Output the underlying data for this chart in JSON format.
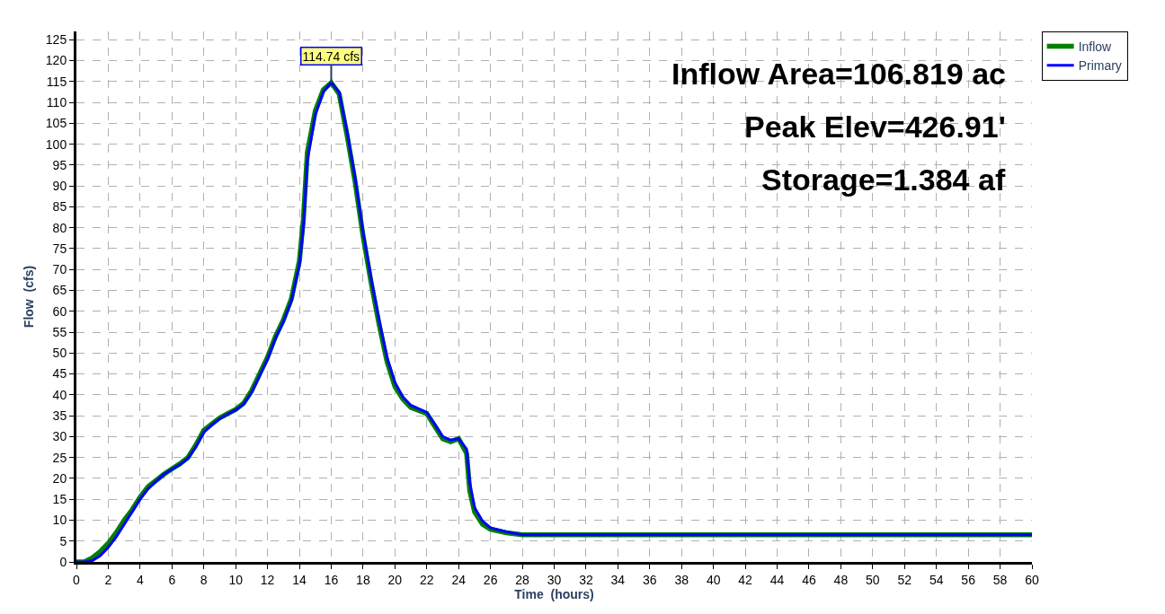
{
  "chart_data": {
    "type": "line",
    "xlabel": "Time  (hours)",
    "ylabel": "Flow  (cfs)",
    "xlim": [
      0,
      60
    ],
    "xticks": [
      0,
      2,
      4,
      6,
      8,
      10,
      12,
      14,
      16,
      18,
      20,
      22,
      24,
      26,
      28,
      30,
      32,
      34,
      36,
      38,
      40,
      42,
      44,
      46,
      48,
      50,
      52,
      54,
      56,
      58,
      60
    ],
    "ylim": [
      0,
      127
    ],
    "yticks": [
      0,
      5,
      10,
      15,
      20,
      25,
      30,
      35,
      40,
      45,
      50,
      55,
      60,
      65,
      70,
      75,
      80,
      85,
      90,
      95,
      100,
      105,
      110,
      115,
      120,
      125
    ],
    "grid": true,
    "legend": "top right",
    "line_style": "solid",
    "marker": "none",
    "series": [
      {
        "name": "Inflow",
        "color": "#008000",
        "x": [
          0,
          0.5,
          1,
          1.5,
          2,
          2.5,
          3,
          3.5,
          4,
          4.5,
          5,
          5.5,
          6,
          6.5,
          7,
          7.5,
          8,
          8.5,
          9,
          9.5,
          10,
          10.5,
          11,
          11.5,
          12,
          12.5,
          13,
          13.5,
          14,
          14.25,
          14.5,
          15,
          15.5,
          16,
          16.5,
          17,
          17.5,
          18,
          18.5,
          19,
          19.5,
          20,
          20.5,
          21,
          22,
          22.5,
          23,
          23.5,
          24,
          24.5,
          24.7,
          25,
          25.5,
          26,
          27,
          28,
          60
        ],
        "values": [
          0,
          0,
          1,
          2.5,
          4.5,
          7,
          10,
          12.5,
          15.5,
          18,
          19.5,
          21,
          22.3,
          23.5,
          25,
          28,
          31.5,
          33,
          34.5,
          35.5,
          36.5,
          38,
          41,
          45,
          49,
          54,
          58,
          63,
          72,
          82,
          98,
          108,
          113,
          114.74,
          112,
          102,
          91,
          78,
          67,
          57,
          48,
          42,
          39,
          37,
          35.5,
          32.5,
          29.5,
          28.8,
          29.5,
          26,
          17,
          12,
          9,
          7.8,
          7,
          6.5,
          6.5
        ]
      },
      {
        "name": "Primary",
        "color": "#0000ff",
        "x": [
          0,
          0.5,
          1,
          1.5,
          2,
          2.5,
          3,
          3.5,
          4,
          4.5,
          5,
          5.5,
          6,
          6.5,
          7,
          7.5,
          8,
          8.5,
          9,
          9.5,
          10,
          10.5,
          11,
          11.5,
          12,
          12.5,
          13,
          13.5,
          14,
          14.25,
          14.5,
          15,
          15.5,
          16,
          16.5,
          17,
          17.5,
          18,
          18.5,
          19,
          19.5,
          20,
          20.5,
          21,
          22,
          22.5,
          23,
          23.5,
          24,
          24.5,
          24.7,
          25,
          25.5,
          26,
          27,
          28,
          60
        ],
        "values": [
          0,
          0,
          0.3,
          1.5,
          3.5,
          6,
          9,
          12,
          15,
          17.5,
          19.3,
          21,
          22.2,
          23.3,
          24.8,
          27.5,
          31,
          32.8,
          34.3,
          35.4,
          36.4,
          37.8,
          40.5,
          44.5,
          48.5,
          53.5,
          57.5,
          62.5,
          71,
          80,
          96,
          107,
          112.5,
          114.74,
          112.5,
          103,
          92,
          79,
          68,
          58,
          49,
          43,
          39.5,
          37.5,
          35.8,
          33,
          30,
          29.2,
          29.5,
          27,
          19,
          13,
          9.8,
          8.2,
          7.2,
          6.5,
          6.5
        ]
      }
    ],
    "annotations": [
      {
        "text": "114.74 cfs",
        "x": 16,
        "y": 114.74
      },
      "Inflow Area=106.819 ac",
      "Peak Elev=426.91'",
      "Storage=1.384 af"
    ]
  }
}
